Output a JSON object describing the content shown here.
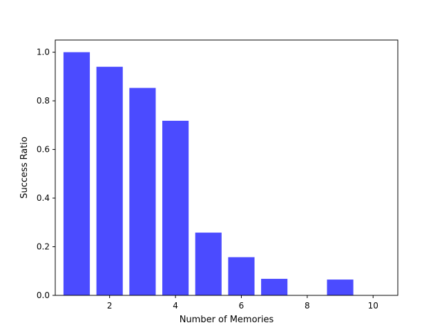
{
  "chart_data": {
    "type": "bar",
    "x": [
      1,
      2,
      3,
      4,
      5,
      6,
      7,
      8,
      9,
      10
    ],
    "values": [
      1.0,
      0.94,
      0.853,
      0.718,
      0.258,
      0.157,
      0.068,
      0.0,
      0.065,
      0.0
    ],
    "xlabel": "Number of Memories",
    "ylabel": "Success Ratio",
    "xlim": [
      0.35,
      10.75
    ],
    "ylim": [
      0.0,
      1.05
    ],
    "xticks": [
      2,
      4,
      6,
      8,
      10
    ],
    "xtick_labels": [
      "2",
      "4",
      "6",
      "8",
      "10"
    ],
    "yticks": [
      0.0,
      0.2,
      0.4,
      0.6,
      0.8,
      1.0
    ],
    "ytick_labels": [
      "0.0",
      "0.2",
      "0.4",
      "0.6",
      "0.8",
      "1.0"
    ],
    "bar_color": "#4b4bff",
    "bar_width": 0.8,
    "grid": false
  }
}
